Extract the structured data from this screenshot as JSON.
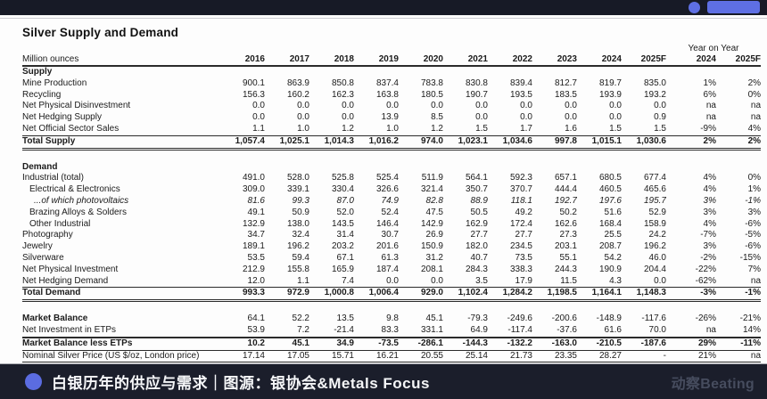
{
  "top_bar": {
    "accent_color": "#5e6fe3"
  },
  "header": {
    "title": "Silver Supply and Demand"
  },
  "chart_data": {
    "type": "table",
    "title": "Silver Supply and Demand",
    "unit_label": "Million ounces",
    "year_on_year_label": "Year on Year",
    "columns": [
      "2016",
      "2017",
      "2018",
      "2019",
      "2020",
      "2021",
      "2022",
      "2023",
      "2024",
      "2025F"
    ],
    "yoy_columns": [
      "2024",
      "2025F"
    ],
    "rows": [
      {
        "label": "Supply",
        "style": "section",
        "values": [],
        "yoy": []
      },
      {
        "label": "Mine Production",
        "values": [
          "900.1",
          "863.9",
          "850.8",
          "837.4",
          "783.8",
          "830.8",
          "839.4",
          "812.7",
          "819.7",
          "835.0"
        ],
        "yoy": [
          "1%",
          "2%"
        ]
      },
      {
        "label": "Recycling",
        "values": [
          "156.3",
          "160.2",
          "162.3",
          "163.8",
          "180.5",
          "190.7",
          "193.5",
          "183.5",
          "193.9",
          "193.2"
        ],
        "yoy": [
          "6%",
          "0%"
        ]
      },
      {
        "label": "Net Physical Disinvestment",
        "values": [
          "0.0",
          "0.0",
          "0.0",
          "0.0",
          "0.0",
          "0.0",
          "0.0",
          "0.0",
          "0.0",
          "0.0"
        ],
        "yoy": [
          "na",
          "na"
        ]
      },
      {
        "label": "Net Hedging Supply",
        "values": [
          "0.0",
          "0.0",
          "0.0",
          "13.9",
          "8.5",
          "0.0",
          "0.0",
          "0.0",
          "0.0",
          "0.9"
        ],
        "yoy": [
          "na",
          "na"
        ]
      },
      {
        "label": "Net Official Sector Sales",
        "values": [
          "1.1",
          "1.0",
          "1.2",
          "1.0",
          "1.2",
          "1.5",
          "1.7",
          "1.6",
          "1.5",
          "1.5"
        ],
        "yoy": [
          "-9%",
          "4%"
        ],
        "border": "bottom-thin"
      },
      {
        "label": "Total Supply",
        "style": "total",
        "values": [
          "1,057.4",
          "1,025.1",
          "1,014.3",
          "1,016.2",
          "974.0",
          "1,023.1",
          "1,034.6",
          "997.8",
          "1,015.1",
          "1,030.6"
        ],
        "yoy": [
          "2%",
          "2%"
        ],
        "border": "bottom-double"
      },
      {
        "style": "spacer"
      },
      {
        "label": "Demand",
        "style": "section",
        "values": [],
        "yoy": []
      },
      {
        "label": "Industrial (total)",
        "values": [
          "491.0",
          "528.0",
          "525.8",
          "525.4",
          "511.9",
          "564.1",
          "592.3",
          "657.1",
          "680.5",
          "677.4"
        ],
        "yoy": [
          "4%",
          "0%"
        ]
      },
      {
        "label": "Electrical & Electronics",
        "indent": 1,
        "values": [
          "309.0",
          "339.1",
          "330.4",
          "326.6",
          "321.4",
          "350.7",
          "370.7",
          "444.4",
          "460.5",
          "465.6"
        ],
        "yoy": [
          "4%",
          "1%"
        ]
      },
      {
        "label": "...of which photovoltaics",
        "indent": 2,
        "italic": true,
        "values": [
          "81.6",
          "99.3",
          "87.0",
          "74.9",
          "82.8",
          "88.9",
          "118.1",
          "192.7",
          "197.6",
          "195.7"
        ],
        "yoy": [
          "3%",
          "-1%"
        ]
      },
      {
        "label": "Brazing Alloys & Solders",
        "indent": 1,
        "values": [
          "49.1",
          "50.9",
          "52.0",
          "52.4",
          "47.5",
          "50.5",
          "49.2",
          "50.2",
          "51.6",
          "52.9"
        ],
        "yoy": [
          "3%",
          "3%"
        ]
      },
      {
        "label": "Other Industrial",
        "indent": 1,
        "values": [
          "132.9",
          "138.0",
          "143.5",
          "146.4",
          "142.9",
          "162.9",
          "172.4",
          "162.6",
          "168.4",
          "158.9"
        ],
        "yoy": [
          "4%",
          "-6%"
        ]
      },
      {
        "label": "Photography",
        "values": [
          "34.7",
          "32.4",
          "31.4",
          "30.7",
          "26.9",
          "27.7",
          "27.7",
          "27.3",
          "25.5",
          "24.2"
        ],
        "yoy": [
          "-7%",
          "-5%"
        ]
      },
      {
        "label": "Jewelry",
        "values": [
          "189.1",
          "196.2",
          "203.2",
          "201.6",
          "150.9",
          "182.0",
          "234.5",
          "203.1",
          "208.7",
          "196.2"
        ],
        "yoy": [
          "3%",
          "-6%"
        ]
      },
      {
        "label": "Silverware",
        "values": [
          "53.5",
          "59.4",
          "67.1",
          "61.3",
          "31.2",
          "40.7",
          "73.5",
          "55.1",
          "54.2",
          "46.0"
        ],
        "yoy": [
          "-2%",
          "-15%"
        ]
      },
      {
        "label": "Net Physical Investment",
        "values": [
          "212.9",
          "155.8",
          "165.9",
          "187.4",
          "208.1",
          "284.3",
          "338.3",
          "244.3",
          "190.9",
          "204.4"
        ],
        "yoy": [
          "-22%",
          "7%"
        ]
      },
      {
        "label": "Net Hedging Demand",
        "values": [
          "12.0",
          "1.1",
          "7.4",
          "0.0",
          "0.0",
          "3.5",
          "17.9",
          "11.5",
          "4.3",
          "0.0"
        ],
        "yoy": [
          "-62%",
          "na"
        ],
        "border": "bottom-thin"
      },
      {
        "label": "Total Demand",
        "style": "total",
        "values": [
          "993.3",
          "972.9",
          "1,000.8",
          "1,006.4",
          "929.0",
          "1,102.4",
          "1,284.2",
          "1,198.5",
          "1,164.1",
          "1,148.3"
        ],
        "yoy": [
          "-3%",
          "-1%"
        ],
        "border": "bottom-double"
      },
      {
        "style": "spacer"
      },
      {
        "label": "Market Balance",
        "style": "bold-label",
        "values": [
          "64.1",
          "52.2",
          "13.5",
          "9.8",
          "45.1",
          "-79.3",
          "-249.6",
          "-200.6",
          "-148.9",
          "-117.6"
        ],
        "yoy": [
          "-26%",
          "-21%"
        ]
      },
      {
        "label": "Net Investment in ETPs",
        "values": [
          "53.9",
          "7.2",
          "-21.4",
          "83.3",
          "331.1",
          "64.9",
          "-117.4",
          "-37.6",
          "61.6",
          "70.0"
        ],
        "yoy": [
          "na",
          "14%"
        ],
        "border": "bottom-thick"
      },
      {
        "label": "Market Balance less ETPs",
        "style": "total",
        "values": [
          "10.2",
          "45.1",
          "34.9",
          "-73.5",
          "-286.1",
          "-144.3",
          "-132.2",
          "-163.0",
          "-210.5",
          "-187.6"
        ],
        "yoy": [
          "29%",
          "-11%"
        ],
        "border": "bottom-thin"
      },
      {
        "label": "Nominal Silver Price (US $/oz, London price)",
        "values": [
          "17.14",
          "17.05",
          "15.71",
          "16.21",
          "20.55",
          "25.14",
          "21.73",
          "23.35",
          "28.27",
          "-"
        ],
        "yoy": [
          "21%",
          "na"
        ],
        "border": "bottom-thin"
      }
    ],
    "source": "Source: Metals Focus"
  },
  "footer": {
    "caption": "白银历年的供应与需求｜图源：银协会&Metals Focus",
    "logo": "动察Beating"
  }
}
